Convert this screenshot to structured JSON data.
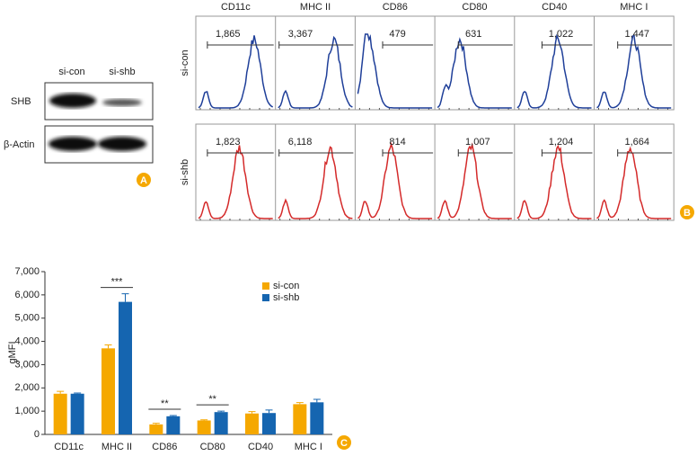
{
  "panel_labels": [
    "A",
    "B",
    "C"
  ],
  "blot": {
    "lanes": [
      "si-con",
      "si-shb"
    ],
    "proteins": [
      "SHB",
      "β-Actin"
    ]
  },
  "flow": {
    "markers": [
      "CD11c",
      "MHC II",
      "CD86",
      "CD80",
      "CD40",
      "MHC I"
    ],
    "rows": [
      {
        "name": "si-con",
        "color": "#1f3f99",
        "mfi": [
          "1,865",
          "3,367",
          "479",
          "631",
          "1,022",
          "1,447"
        ]
      },
      {
        "name": "si-shb",
        "color": "#d42a2a",
        "mfi": [
          "1,823",
          "6,118",
          "814",
          "1,007",
          "1,204",
          "1,664"
        ]
      }
    ]
  },
  "chart_data": {
    "type": "bar",
    "y_label": "gMFI",
    "categories": [
      "CD11c",
      "MHC II",
      "CD86",
      "CD80",
      "CD40",
      "MHC I"
    ],
    "series": [
      {
        "name": "si-con",
        "color": "#f5a800",
        "values": [
          1750,
          3700,
          430,
          600,
          900,
          1300
        ],
        "errors": [
          100,
          150,
          50,
          30,
          80,
          70
        ]
      },
      {
        "name": "si-shb",
        "color": "#1565b0",
        "values": [
          1750,
          5700,
          780,
          960,
          920,
          1380
        ],
        "errors": [
          30,
          350,
          30,
          40,
          130,
          130
        ]
      }
    ],
    "annotations": [
      "***",
      "**",
      "**"
    ],
    "ylim": [
      0,
      7000
    ],
    "yticks": [
      0,
      {
        "value": 1000,
        "label": "1,000"
      },
      {
        "value": 2000,
        "label": "2,000"
      },
      {
        "value": 3000,
        "label": "3,000"
      },
      {
        "value": 4000,
        "label": "4,000"
      },
      {
        "value": 5000,
        "label": "5,000"
      },
      {
        "value": 6000,
        "label": "6,000"
      },
      {
        "value": 7000,
        "label": "7,000"
      }
    ],
    "legend": "top-right"
  }
}
